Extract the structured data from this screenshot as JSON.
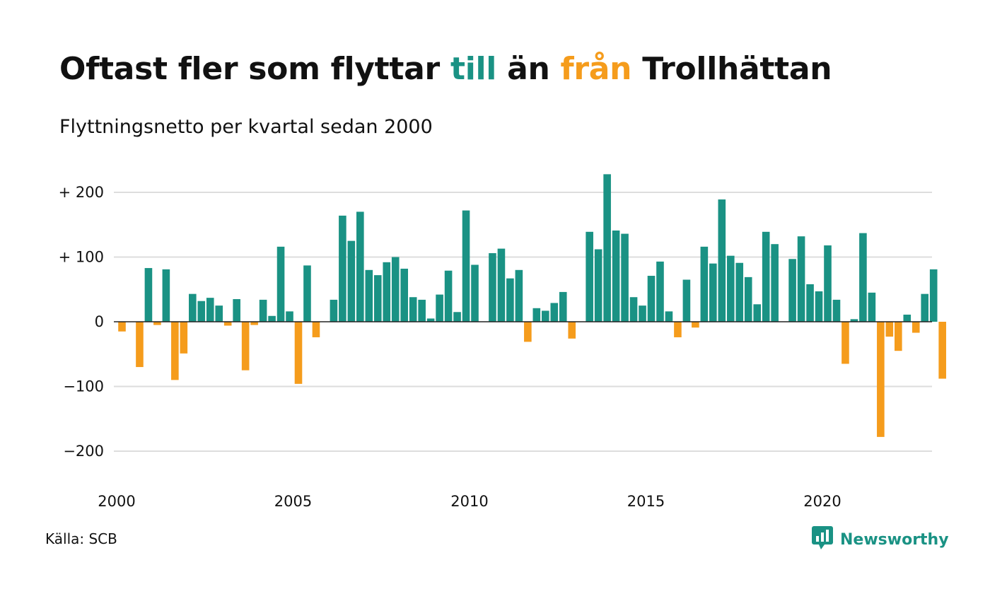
{
  "header": {
    "title_parts": [
      "Oftast fler som flyttar ",
      "till",
      " än ",
      "från",
      " Trollhättan"
    ],
    "subtitle": "Flyttningsnetto per kvartal sedan 2000"
  },
  "colors": {
    "positive": "#1a9284",
    "negative": "#f59c1c",
    "grid": "#dddddd",
    "text": "#111111",
    "zero_line": "#222222"
  },
  "footer": {
    "source": "Källa: SCB",
    "brand": "Newsworthy",
    "brand_icon": "newsworthy-logo-icon"
  },
  "chart_data": {
    "type": "bar",
    "title": "Oftast fler som flyttar till än från Trollhättan",
    "subtitle": "Flyttningsnetto per kvartal sedan 2000",
    "xlabel": "",
    "ylabel": "",
    "ylim": [
      -230,
      240
    ],
    "yticks": [
      {
        "value": 200,
        "label": "+ 200"
      },
      {
        "value": 100,
        "label": "+ 100"
      },
      {
        "value": 0,
        "label": "0"
      },
      {
        "value": -100,
        "label": "−100"
      },
      {
        "value": -200,
        "label": "−200"
      }
    ],
    "xticks": [
      {
        "value": 2000,
        "label": "2000"
      },
      {
        "value": 2005,
        "label": "2005"
      },
      {
        "value": 2010,
        "label": "2010"
      },
      {
        "value": 2015,
        "label": "2015"
      },
      {
        "value": 2020,
        "label": "2020"
      }
    ],
    "x_start": "2000 Q1",
    "frequency": "quarterly",
    "grid": true,
    "values": [
      -15,
      0,
      -70,
      83,
      -5,
      81,
      -90,
      -49,
      43,
      32,
      37,
      25,
      -6,
      35,
      -75,
      -5,
      34,
      9,
      116,
      16,
      -96,
      87,
      -24,
      0,
      34,
      164,
      125,
      170,
      80,
      72,
      92,
      100,
      82,
      38,
      34,
      5,
      42,
      79,
      15,
      172,
      88,
      0,
      106,
      113,
      67,
      80,
      -31,
      21,
      17,
      29,
      46,
      -26,
      0,
      139,
      112,
      228,
      141,
      136,
      38,
      25,
      71,
      93,
      16,
      -24,
      65,
      -9,
      116,
      90,
      189,
      102,
      91,
      69,
      27,
      139,
      120,
      0,
      97,
      132,
      58,
      47,
      118,
      34,
      -65,
      4,
      137,
      45,
      -178,
      -23,
      -45,
      11,
      -17,
      43,
      81,
      -88
    ]
  }
}
